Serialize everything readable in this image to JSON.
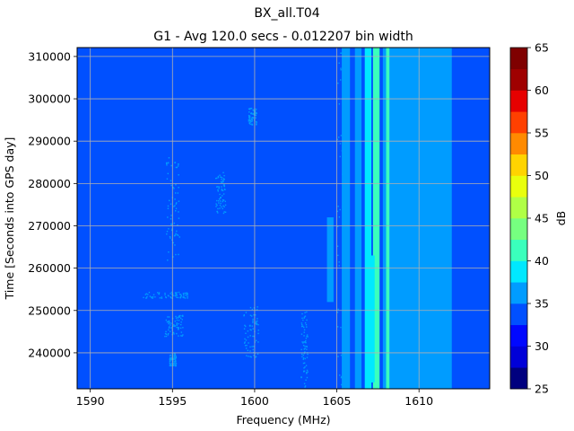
{
  "chart_data": {
    "type": "heatmap",
    "title": "BX_all.T04",
    "subtitle": "G1 - Avg 120.0 secs - 0.012207 bin width",
    "xlabel": "Frequency (MHz)",
    "ylabel": "Time [Seconds into GPS day]",
    "xlim": [
      1589.2,
      1614.3
    ],
    "ylim": [
      231500,
      312100
    ],
    "xticks": [
      1590,
      1595,
      1600,
      1605,
      1610
    ],
    "xtick_labels": [
      "1590",
      "1595",
      "1600",
      "1605",
      "1610"
    ],
    "yticks": [
      240000,
      250000,
      260000,
      270000,
      280000,
      290000,
      300000,
      310000
    ],
    "ytick_labels": [
      "240000",
      "250000",
      "260000",
      "270000",
      "280000",
      "290000",
      "300000",
      "310000"
    ],
    "grid": true,
    "colorbar": {
      "label": "dB",
      "levels": [
        25,
        27.5,
        30,
        32.5,
        35,
        37.5,
        40,
        42.5,
        45,
        47.5,
        50,
        52.5,
        55,
        57.5,
        60,
        62.5,
        65
      ],
      "ticks": [
        25,
        30,
        35,
        40,
        45,
        50,
        55,
        60,
        65
      ],
      "tick_labels": [
        "25",
        "30",
        "35",
        "40",
        "45",
        "50",
        "55",
        "60",
        "65"
      ],
      "colors": [
        "#00007f",
        "#0000d8",
        "#0008ff",
        "#0050ff",
        "#009cff",
        "#00e8ff",
        "#3affbc",
        "#76ff80",
        "#b0ff46",
        "#e9ff0d",
        "#ffd400",
        "#ff8a00",
        "#ff4000",
        "#e60000",
        "#9f0000",
        "#7f0000"
      ]
    },
    "background_level": 33.5,
    "regions": [
      {
        "x": [
          1605.3,
          1605.8
        ],
        "y": [
          231500,
          312100
        ],
        "value": 36
      },
      {
        "x": [
          1606.1,
          1606.5
        ],
        "y": [
          231500,
          312100
        ],
        "value": 37
      },
      {
        "x": [
          1606.7,
          1607.1
        ],
        "y": [
          231500,
          312100
        ],
        "value": 38
      },
      {
        "x": [
          1607.2,
          1607.6
        ],
        "y": [
          231500,
          312100
        ],
        "value": 40
      },
      {
        "x": [
          1607.8,
          1612.0
        ],
        "y": [
          231500,
          312100
        ],
        "value": 36
      },
      {
        "x": [
          1608.0,
          1608.2
        ],
        "y": [
          231500,
          312100
        ],
        "value": 40
      },
      {
        "x": [
          1612.0,
          1612.6
        ],
        "y": [
          231500,
          312100
        ],
        "value": 34.5
      },
      {
        "x": [
          1606.9,
          1607.3
        ],
        "y": [
          233000,
          263000
        ],
        "value": 39
      },
      {
        "x": [
          1604.4,
          1604.8
        ],
        "y": [
          252000,
          272000
        ],
        "value": 36.5
      },
      {
        "x": [
          1610.4,
          1610.8
        ],
        "y": [
          296000,
          304000
        ],
        "value": 37
      }
    ],
    "speckle_clusters": [
      {
        "x": [
          1594.6,
          1595.4
        ],
        "y": [
          262000,
          287000
        ],
        "value": 36
      },
      {
        "x": [
          1594.5,
          1595.6
        ],
        "y": [
          244000,
          249000
        ],
        "value": 36
      },
      {
        "x": [
          1593.2,
          1596.0
        ],
        "y": [
          253000,
          254500
        ],
        "value": 36
      },
      {
        "x": [
          1597.6,
          1598.2
        ],
        "y": [
          273000,
          283000
        ],
        "value": 36
      },
      {
        "x": [
          1599.3,
          1600.2
        ],
        "y": [
          239000,
          251000
        ],
        "value": 36
      },
      {
        "x": [
          1599.6,
          1600.1
        ],
        "y": [
          294000,
          298000
        ],
        "value": 36
      },
      {
        "x": [
          1594.8,
          1595.2
        ],
        "y": [
          237000,
          240000
        ],
        "value": 36
      },
      {
        "x": [
          1605.0,
          1605.5
        ],
        "y": [
          231500,
          312100
        ],
        "value": 36
      },
      {
        "x": [
          1602.8,
          1603.2
        ],
        "y": [
          232000,
          250000
        ],
        "value": 36
      }
    ]
  }
}
